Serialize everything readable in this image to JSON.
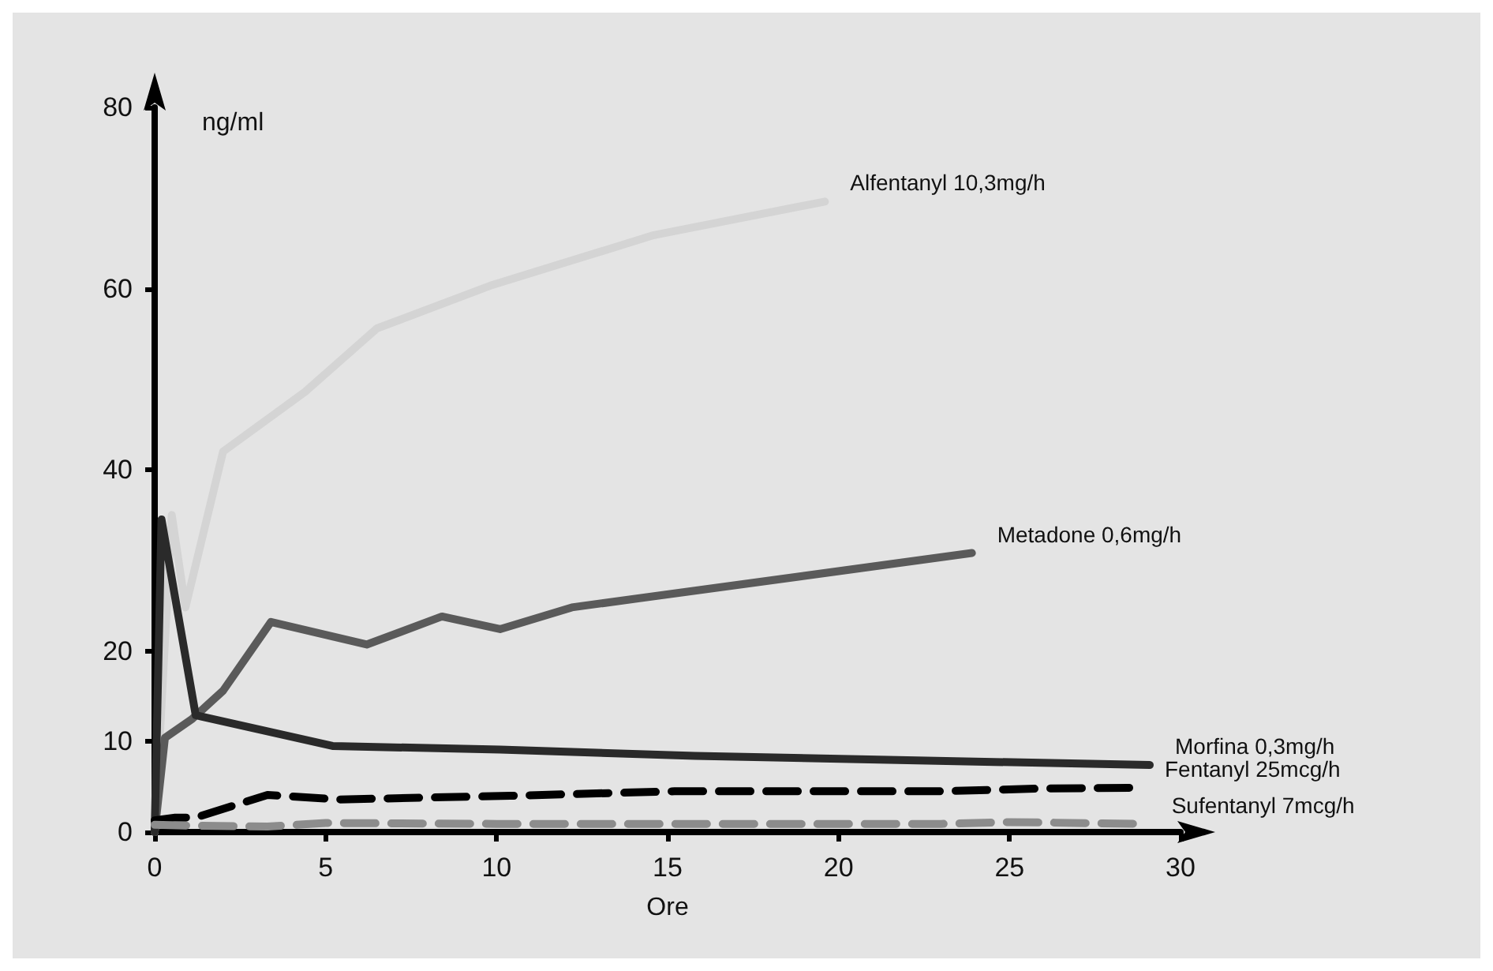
{
  "chart_data": {
    "type": "line",
    "xlabel": "Ore",
    "ylabel": "ng/ml",
    "xlim": [
      0,
      30
    ],
    "xticks": [
      0,
      5,
      10,
      15,
      20,
      25,
      30
    ],
    "ylim": [
      0,
      80
    ],
    "yticks": [
      0,
      10,
      20,
      40,
      60,
      80
    ],
    "grid": false,
    "legend": false,
    "marker": "none",
    "series": [
      {
        "name": "Alfentanyl 10,3mg/h",
        "color": "#d4d4d4",
        "line_style": "solid",
        "x": [
          0,
          0.5,
          0.9,
          2.0,
          4.4,
          6.5,
          9.8,
          14.6,
          19.6
        ],
        "values": [
          0,
          35,
          24.8,
          42,
          48.6,
          55.6,
          60.3,
          65.9,
          69.6
        ]
      },
      {
        "name": "Metadone 0,6mg/h",
        "color": "#5a5a5a",
        "line_style": "solid",
        "x": [
          0,
          0.3,
          1.1,
          2.0,
          3.4,
          6.2,
          8.4,
          10.1,
          12.2,
          23.9
        ],
        "values": [
          0,
          10.4,
          12.5,
          15.6,
          23.2,
          20.7,
          23.8,
          22.4,
          24.8,
          30.8
        ]
      },
      {
        "name": "Morfina 0,3mg/h",
        "color": "#2a2a2a",
        "line_style": "solid",
        "x": [
          0,
          0.2,
          1.2,
          5.2,
          10.1,
          15.8,
          29.1
        ],
        "values": [
          0,
          34.5,
          12.9,
          9.5,
          9.1,
          8.4,
          7.4
        ]
      },
      {
        "name": "Fentanyl 25mcg/h",
        "color": "#000000",
        "line_style": "dashed",
        "x": [
          0,
          0.6,
          1.2,
          3.3,
          5.4,
          10.4,
          15.2,
          22.9,
          25.9,
          28.8
        ],
        "values": [
          1.3,
          1.6,
          1.6,
          4.1,
          3.6,
          4.0,
          4.5,
          4.5,
          4.8,
          4.9
        ]
      },
      {
        "name": "Sufentanyl 7mcg/h",
        "color": "#8c8c8c",
        "line_style": "dashed",
        "x": [
          0,
          1.2,
          3.3,
          5.0,
          10.0,
          23.0,
          25.0,
          29.0
        ],
        "values": [
          0.8,
          0.7,
          0.6,
          1.0,
          0.9,
          0.9,
          1.1,
          0.9
        ]
      }
    ]
  }
}
